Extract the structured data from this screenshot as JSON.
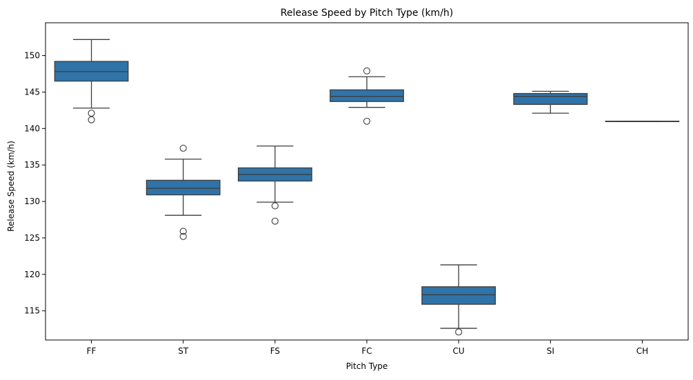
{
  "chart_data": {
    "type": "box",
    "title": "Release Speed by Pitch Type (km/h)",
    "xlabel": "Pitch Type",
    "ylabel": "Release Speed (km/h)",
    "ylim": [
      111,
      154.5
    ],
    "yticks": [
      115,
      120,
      125,
      130,
      135,
      140,
      145,
      150
    ],
    "grid": false,
    "box_color": "#2f73a8",
    "line_color": "#3c3c3c",
    "categories": [
      "FF",
      "ST",
      "FS",
      "FC",
      "CU",
      "SI",
      "CH"
    ],
    "boxes": [
      {
        "category": "FF",
        "whisker_low": 142.8,
        "q1": 146.5,
        "median": 147.8,
        "q3": 149.2,
        "whisker_high": 152.2,
        "outliers": [
          142.1,
          141.2
        ]
      },
      {
        "category": "ST",
        "whisker_low": 128.1,
        "q1": 130.9,
        "median": 131.8,
        "q3": 132.9,
        "whisker_high": 135.8,
        "outliers": [
          137.3,
          125.9,
          125.2
        ]
      },
      {
        "category": "FS",
        "whisker_low": 129.9,
        "q1": 132.8,
        "median": 133.7,
        "q3": 134.6,
        "whisker_high": 137.6,
        "outliers": [
          129.4,
          127.3
        ]
      },
      {
        "category": "FC",
        "whisker_low": 142.9,
        "q1": 143.7,
        "median": 144.4,
        "q3": 145.3,
        "whisker_high": 147.1,
        "outliers": [
          147.9,
          141.0
        ]
      },
      {
        "category": "CU",
        "whisker_low": 112.6,
        "q1": 115.9,
        "median": 117.2,
        "q3": 118.3,
        "whisker_high": 121.3,
        "outliers": [
          112.1
        ]
      },
      {
        "category": "SI",
        "whisker_low": 142.1,
        "q1": 143.3,
        "median": 144.4,
        "q3": 144.8,
        "whisker_high": 145.1,
        "outliers": []
      },
      {
        "category": "CH",
        "whisker_low": 141.0,
        "q1": 141.0,
        "median": 141.0,
        "q3": 141.0,
        "whisker_high": 141.0,
        "outliers": []
      }
    ]
  }
}
